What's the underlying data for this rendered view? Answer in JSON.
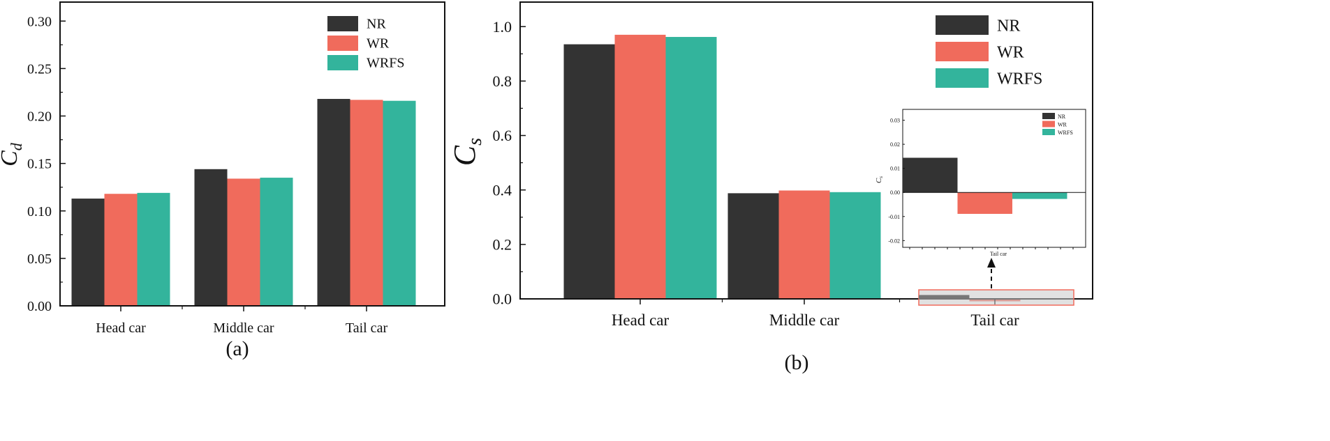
{
  "colors": {
    "NR": "#333333",
    "WR": "#f06b5c",
    "WRFS": "#33b49c",
    "axis": "#111111",
    "highlight": "#f06b5c"
  },
  "chart_data": [
    {
      "type": "bar",
      "panel_label": "(a)",
      "ylabel": "C_d",
      "ylabel_main": "C",
      "ylabel_sub": "d",
      "ylim": [
        0,
        0.32
      ],
      "yticks": [
        "0.00",
        "0.05",
        "0.10",
        "0.15",
        "0.20",
        "0.25",
        "0.30"
      ],
      "categories": [
        "Head car",
        "Middle car",
        "Tail car"
      ],
      "legend_position": "top-right",
      "series": [
        {
          "name": "NR",
          "values": [
            0.113,
            0.144,
            0.218
          ]
        },
        {
          "name": "WR",
          "values": [
            0.118,
            0.134,
            0.217
          ]
        },
        {
          "name": "WRFS",
          "values": [
            0.119,
            0.135,
            0.216
          ]
        }
      ]
    },
    {
      "type": "bar",
      "panel_label": "(b)",
      "ylabel": "C_s",
      "ylabel_main": "C",
      "ylabel_sub": "s",
      "ylim": [
        0,
        1.09
      ],
      "yticks": [
        "0.0",
        "0.2",
        "0.4",
        "0.6",
        "0.8",
        "1.0"
      ],
      "categories": [
        "Head car",
        "Middle car",
        "Tail car"
      ],
      "legend_position": "top-right",
      "series": [
        {
          "name": "NR",
          "values": [
            0.935,
            0.388,
            0.0144
          ]
        },
        {
          "name": "WR",
          "values": [
            0.97,
            0.398,
            -0.0089
          ]
        },
        {
          "name": "WRFS",
          "values": [
            0.962,
            0.392,
            -0.0027
          ]
        }
      ],
      "inset": {
        "type": "bar",
        "ylabel_main": "C",
        "ylabel_sub": "s",
        "ylim": [
          -0.0228,
          0.0345
        ],
        "yticks": [
          "-0.02",
          "-0.01",
          "0.00",
          "0.01",
          "0.02",
          "0.03"
        ],
        "categories": [
          "Tail car"
        ],
        "series": [
          {
            "name": "NR",
            "values": [
              0.0144
            ]
          },
          {
            "name": "WR",
            "values": [
              -0.0089
            ]
          },
          {
            "name": "WRFS",
            "values": [
              -0.0027
            ]
          }
        ],
        "annotation": "zoomed view of Tail car region"
      }
    }
  ]
}
